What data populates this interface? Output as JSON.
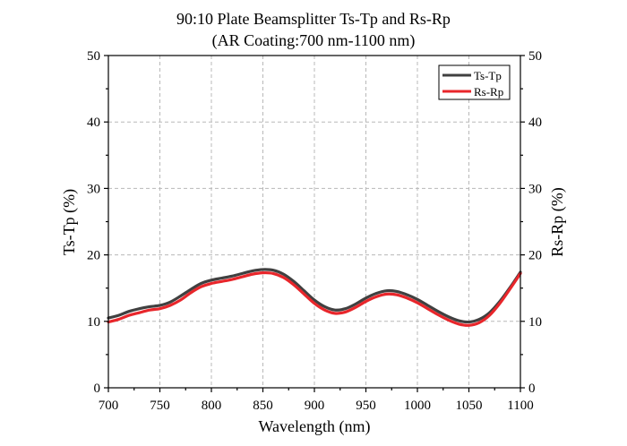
{
  "chart_data": {
    "type": "line",
    "title": "90:10 Plate Beamsplitter Ts-Tp and Rs-Rp",
    "subtitle": "(AR Coating:700 nm-1100 nm)",
    "xlabel": "Wavelength (nm)",
    "ylabel": "Ts-Tp (%)",
    "ylabel_right": "Rs-Rp (%)",
    "xlim": [
      700,
      1100
    ],
    "ylim": [
      0,
      50
    ],
    "x_ticks": [
      700,
      750,
      800,
      850,
      900,
      950,
      1000,
      1050,
      1100
    ],
    "y_ticks": [
      0,
      10,
      20,
      30,
      40,
      50
    ],
    "grid": true,
    "legend_position": "top-right",
    "x": [
      700,
      710,
      720,
      730,
      740,
      750,
      760,
      770,
      780,
      790,
      800,
      810,
      820,
      830,
      840,
      850,
      860,
      870,
      880,
      890,
      900,
      910,
      920,
      930,
      940,
      950,
      960,
      970,
      980,
      990,
      1000,
      1010,
      1020,
      1030,
      1040,
      1050,
      1060,
      1070,
      1080,
      1090,
      1100
    ],
    "series": [
      {
        "name": "Ts-Tp",
        "color": "#404040",
        "values": [
          10.5,
          10.9,
          11.5,
          11.9,
          12.2,
          12.4,
          12.9,
          13.8,
          14.8,
          15.7,
          16.2,
          16.5,
          16.8,
          17.2,
          17.6,
          17.8,
          17.7,
          17.1,
          16.0,
          14.6,
          13.2,
          12.2,
          11.7,
          11.9,
          12.6,
          13.5,
          14.2,
          14.6,
          14.5,
          14.0,
          13.3,
          12.4,
          11.5,
          10.7,
          10.1,
          9.9,
          10.3,
          11.3,
          13.0,
          15.1,
          17.4
        ]
      },
      {
        "name": "Rs-Rp",
        "color": "#e8262b",
        "values": [
          9.9,
          10.3,
          10.9,
          11.3,
          11.7,
          11.9,
          12.4,
          13.2,
          14.3,
          15.2,
          15.7,
          16.0,
          16.3,
          16.7,
          17.1,
          17.3,
          17.2,
          16.6,
          15.5,
          14.1,
          12.7,
          11.7,
          11.2,
          11.4,
          12.1,
          13.0,
          13.7,
          14.1,
          14.0,
          13.5,
          12.8,
          11.9,
          11.0,
          10.2,
          9.6,
          9.4,
          9.8,
          10.9,
          12.7,
          14.9,
          17.2
        ]
      }
    ]
  }
}
